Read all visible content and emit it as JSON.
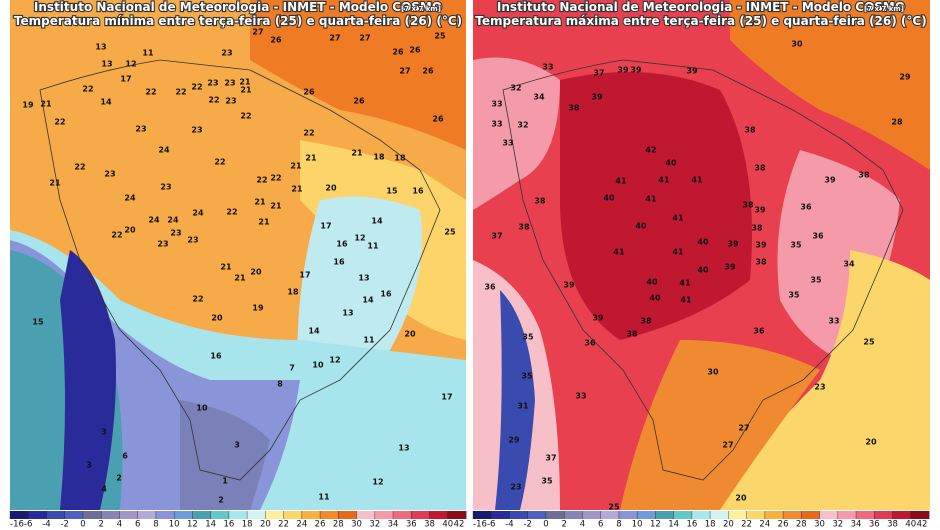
{
  "left_map": {
    "title": "Instituto Nacional de Meteorologia - INMET - Modelo COSMO",
    "resolution": "[7 x 7 km]",
    "subtitle": "Temperatura mínima entre terça-feira (25) e quarta-feira (26) (°C)",
    "labels": [
      "13",
      "11",
      "23",
      "27",
      "26",
      "27",
      "27",
      "25",
      "26",
      "26",
      "27",
      "26",
      "13",
      "12",
      "17",
      "22",
      "14",
      "22",
      "22",
      "23",
      "23",
      "21",
      "22",
      "22",
      "23",
      "21",
      "26",
      "26",
      "19",
      "21",
      "22",
      "23",
      "23",
      "22",
      "26",
      "22",
      "24",
      "21",
      "21",
      "18",
      "18",
      "22",
      "23",
      "22",
      "22",
      "22",
      "21",
      "21",
      "23",
      "20",
      "15",
      "16",
      "24",
      "21",
      "21",
      "22",
      "24",
      "21",
      "22",
      "24",
      "24",
      "17",
      "14",
      "20",
      "23",
      "21",
      "25",
      "23",
      "23",
      "16",
      "12",
      "11",
      "16",
      "21",
      "20",
      "17",
      "13",
      "18",
      "22",
      "21",
      "19",
      "14",
      "16",
      "15",
      "20",
      "13",
      "14",
      "20",
      "11",
      "16",
      "12",
      "10",
      "8",
      "7",
      "10",
      "17",
      "3",
      "6",
      "3",
      "13",
      "3",
      "4",
      "2",
      "1",
      "2",
      "12",
      "11"
    ]
  },
  "right_map": {
    "title": "Instituto Nacional de Meteorologia - INMET - Modelo COSMO",
    "resolution": "[7 x 7 km]",
    "subtitle": "Temperatura máxima entre terça-feira (25) e quarta-feira (26) (°C)",
    "labels": [
      "30",
      "29",
      "28",
      "33",
      "37",
      "39",
      "39",
      "39",
      "32",
      "34",
      "39",
      "33",
      "33",
      "32",
      "38",
      "38",
      "33",
      "42",
      "40",
      "38",
      "38",
      "41",
      "41",
      "41",
      "39",
      "38",
      "40",
      "41",
      "38",
      "39",
      "36",
      "41",
      "38",
      "40",
      "37",
      "38",
      "36",
      "39",
      "40",
      "41",
      "41",
      "39",
      "35",
      "39",
      "40",
      "38",
      "34",
      "36",
      "39",
      "40",
      "41",
      "35",
      "35",
      "40",
      "41",
      "39",
      "38",
      "33",
      "35",
      "36",
      "38",
      "36",
      "25",
      "35",
      "30",
      "33",
      "31",
      "23",
      "29",
      "27",
      "27",
      "37",
      "20",
      "23",
      "35",
      "20",
      "25"
    ]
  },
  "colorbar": {
    "ticks": [
      -16,
      -6,
      -4,
      -2,
      0,
      2,
      4,
      6,
      8,
      10,
      12,
      14,
      16,
      18,
      20,
      22,
      24,
      26,
      28,
      30,
      32,
      34,
      36,
      38,
      40,
      42
    ],
    "colors": [
      "#1a1a6e",
      "#2a2a9a",
      "#3a4bb0",
      "#5060c0",
      "#6e6e96",
      "#8a84b4",
      "#a096c8",
      "#b4aad8",
      "#8a94d8",
      "#6f9cd8",
      "#4aa0b0",
      "#64c8c8",
      "#a8e8ec",
      "#d4f4f4",
      "#fff0a0",
      "#fbd66a",
      "#f8b040",
      "#f08a30",
      "#e66a1c",
      "#f7c0c8",
      "#f59aa8",
      "#ee6a80",
      "#de3c56",
      "#c01830",
      "#8c0c1c"
    ]
  }
}
